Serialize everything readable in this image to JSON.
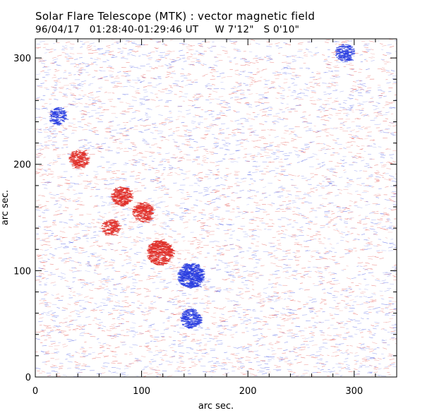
{
  "header": {
    "title": "Solar Flare Telescope (MTK) : vector magnetic field",
    "subtitle": "96/04/17   01:28:40-01:29:46 UT     W 7'12\"   S 0'10\""
  },
  "axes": {
    "xlabel": "arc sec.",
    "ylabel": "arc sec.",
    "xlim": [
      0,
      340
    ],
    "ylim": [
      0,
      318
    ],
    "xticks": [
      0,
      100,
      200,
      300
    ],
    "yticks": [
      0,
      100,
      200,
      300
    ]
  },
  "colors": {
    "positive": "#e0302a",
    "negative": "#2a3ee0",
    "frame": "#000000"
  },
  "magnetogram": {
    "positive_regions": [
      {
        "x": 116,
        "y": 117,
        "strength": 1.0
      },
      {
        "x": 80,
        "y": 170,
        "strength": 0.55
      },
      {
        "x": 100,
        "y": 155,
        "strength": 0.55
      },
      {
        "x": 40,
        "y": 205,
        "strength": 0.45
      },
      {
        "x": 70,
        "y": 140,
        "strength": 0.35
      }
    ],
    "negative_regions": [
      {
        "x": 145,
        "y": 95,
        "strength": 1.0
      },
      {
        "x": 145,
        "y": 55,
        "strength": 0.5
      },
      {
        "x": 290,
        "y": 305,
        "strength": 0.35
      },
      {
        "x": 20,
        "y": 245,
        "strength": 0.3
      }
    ]
  }
}
